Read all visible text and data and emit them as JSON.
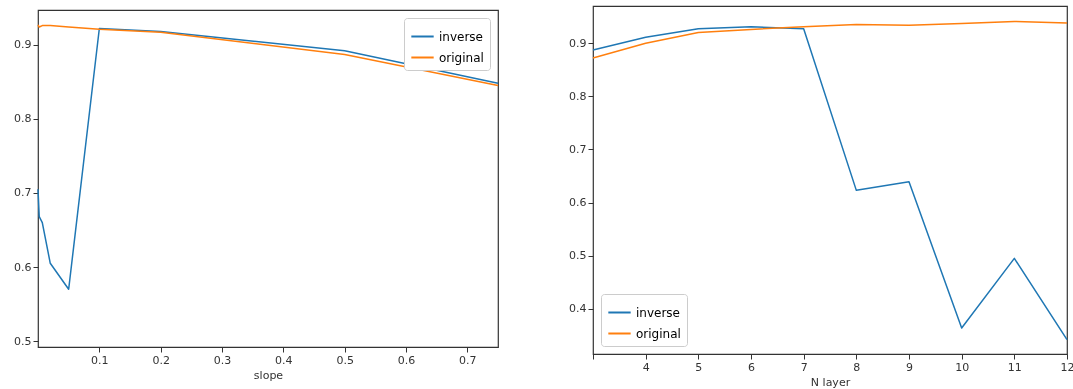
{
  "chart_data": [
    {
      "type": "line",
      "xlabel": "slope",
      "xlim": [
        0,
        0.75
      ],
      "xticks": [
        0.1,
        0.2,
        0.3,
        0.4,
        0.5,
        0.6,
        0.7
      ],
      "ylim": [
        0.492,
        0.947
      ],
      "yticks": [
        0.5,
        0.6,
        0.7,
        0.8,
        0.9
      ],
      "grid": false,
      "legend": "top right",
      "x": [
        0,
        0.002,
        0.007,
        0.02,
        0.05,
        0.1,
        0.2,
        0.5,
        0.75
      ],
      "series": [
        {
          "name": "inverse",
          "color": "#1f77b4",
          "values": [
            0.705,
            0.668,
            0.66,
            0.605,
            0.57,
            0.922,
            0.918,
            0.892,
            0.848
          ]
        },
        {
          "name": "original",
          "color": "#ff7f0e",
          "values": [
            0.927,
            0.924,
            0.926,
            0.926,
            0.924,
            0.921,
            0.917,
            0.887,
            0.845
          ]
        }
      ]
    },
    {
      "type": "line",
      "xlabel": "N layer",
      "xlim": [
        3,
        12
      ],
      "xticks": [
        {
          "value": 3,
          "label": null
        },
        4,
        5,
        6,
        7,
        8,
        9,
        10,
        11,
        12
      ],
      "ylim": [
        0.315,
        0.97
      ],
      "yticks": [
        0.4,
        0.5,
        0.6,
        0.7,
        0.8,
        0.9
      ],
      "grid": false,
      "legend": "bottom left",
      "x": [
        3,
        4,
        5,
        6,
        7,
        8,
        9,
        10,
        11,
        12
      ],
      "series": [
        {
          "name": "inverse",
          "color": "#1f77b4",
          "values": [
            0.887,
            0.911,
            0.927,
            0.931,
            0.927,
            0.623,
            0.639,
            0.364,
            0.495,
            0.342
          ]
        },
        {
          "name": "original",
          "color": "#ff7f0e",
          "values": [
            0.872,
            0.9,
            0.92,
            0.926,
            0.931,
            0.935,
            0.934,
            0.937,
            0.941,
            0.938
          ]
        }
      ]
    }
  ]
}
